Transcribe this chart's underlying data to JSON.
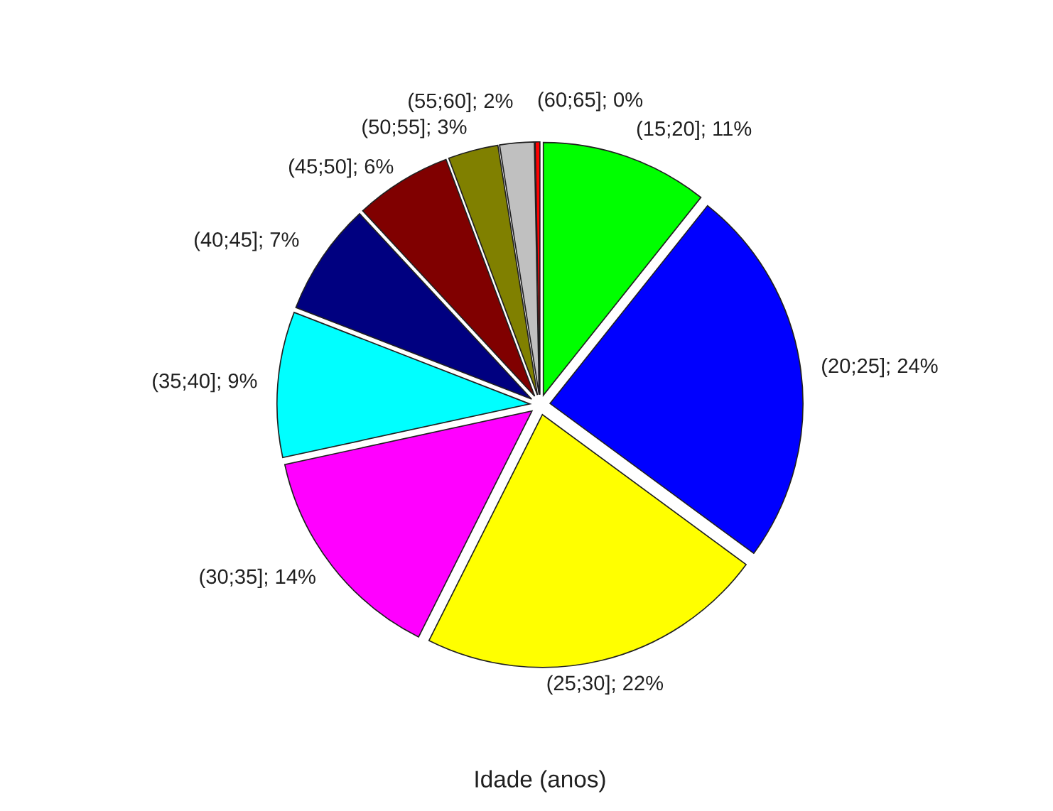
{
  "chart_data": {
    "type": "pie",
    "xlabel": "Idade (anos)",
    "categories": [
      "(15;20]",
      "(20;25]",
      "(25;30]",
      "(30;35]",
      "(35;40]",
      "(40;45]",
      "(45;50]",
      "(50;55]",
      "(55;60]",
      "(60;65]"
    ],
    "values": [
      10.7,
      24.4,
      22.3,
      14.2,
      9.3,
      7.2,
      6.2,
      3.2,
      2.2,
      0.3
    ],
    "value_labels": [
      "11%",
      "24%",
      "22%",
      "14%",
      "9%",
      "7%",
      "6%",
      "3%",
      "2%",
      "0%"
    ],
    "colors": [
      "#00ff00",
      "#0000ff",
      "#ffff00",
      "#ff00ff",
      "#00ffff",
      "#000080",
      "#800000",
      "#808000",
      "#c0c0c0",
      "#ff0000"
    ]
  }
}
